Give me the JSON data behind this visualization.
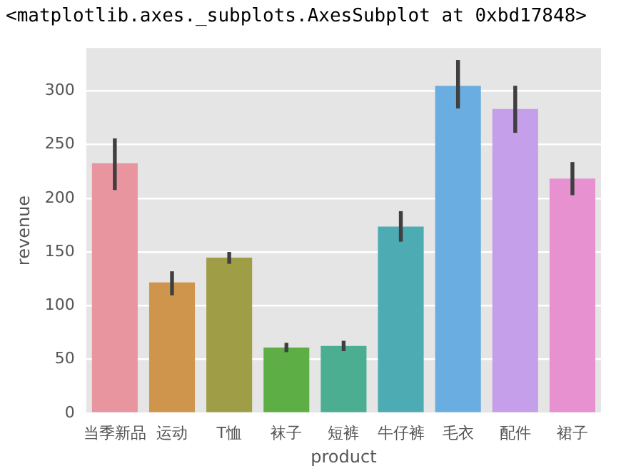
{
  "chart_data": {
    "type": "bar",
    "xlabel": "product",
    "ylabel": "revenue",
    "annotations": [
      "<matplotlib.axes._subplots.AxesSubplot at 0xbd17848>"
    ],
    "categories": [
      "当季新品",
      "运动",
      "T恤",
      "袜子",
      "短裤",
      "牛仔裤",
      "毛衣",
      "配件",
      "裙子"
    ],
    "values": [
      232.7,
      121.6,
      144.7,
      61,
      62.5,
      173.6,
      304.8,
      283.2,
      218.3
    ],
    "errors": [
      [
        207.7,
        255.8
      ],
      [
        109.6,
        132
      ],
      [
        139,
        150
      ],
      [
        56.7,
        65.4
      ],
      [
        57.7,
        67.3
      ],
      [
        159.6,
        188
      ],
      [
        283.7,
        328.8
      ],
      [
        261,
        304.8
      ],
      [
        202.9,
        233.7
      ]
    ],
    "colors": [
      "#e8959f",
      "#d0954d",
      "#a09d47",
      "#5eae46",
      "#4bae91",
      "#4dabb3",
      "#6aade0",
      "#c59fe9",
      "#e891d0"
    ],
    "ylim": [
      0,
      340
    ],
    "yticks": [
      0,
      50,
      100,
      150,
      200,
      250,
      300
    ],
    "grid": "y",
    "legend": false
  }
}
